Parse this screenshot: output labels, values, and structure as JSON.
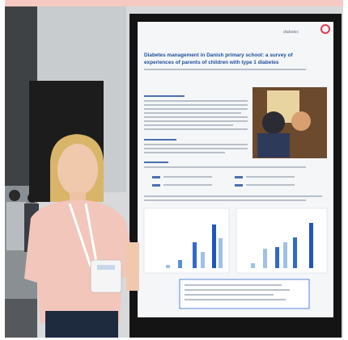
{
  "poster": {
    "title_line1": "Diabetes management in Danish primary school: a survey of",
    "title_line2": "experiences of parents of children with type 1 diabetes",
    "logo": "diabetes"
  }
}
